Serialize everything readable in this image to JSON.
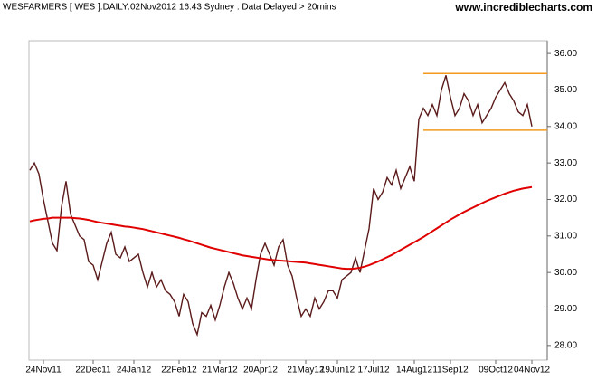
{
  "chart_data": {
    "type": "line",
    "title": "WESFARMERS [ WES ]:DAILY:02Nov2012 16:43 Sydney : Data Delayed > 20mins",
    "subtitle": "www.incrediblecharts.com",
    "categories": [
      null,
      null,
      null,
      "24Nov11",
      null,
      null,
      null,
      null,
      null,
      null,
      null,
      null,
      null,
      null,
      "22Dec11",
      null,
      null,
      null,
      null,
      null,
      null,
      null,
      null,
      "24Jan12",
      null,
      null,
      null,
      null,
      null,
      null,
      null,
      null,
      null,
      "22Feb12",
      null,
      null,
      null,
      null,
      null,
      null,
      null,
      null,
      "21Mar12",
      null,
      null,
      null,
      null,
      null,
      null,
      null,
      null,
      "20Apr12",
      null,
      null,
      null,
      null,
      null,
      null,
      null,
      null,
      null,
      "21May12",
      null,
      null,
      null,
      null,
      null,
      null,
      "19Jun12",
      null,
      null,
      null,
      null,
      null,
      null,
      null,
      "17Jul12",
      null,
      null,
      null,
      null,
      null,
      null,
      null,
      null,
      "14Aug12",
      null,
      null,
      null,
      null,
      null,
      null,
      null,
      "11Sep12",
      null,
      null,
      null,
      null,
      null,
      null,
      null,
      null,
      null,
      "09Oct12",
      null,
      null,
      null,
      null,
      null,
      null,
      null,
      "04Nov12"
    ],
    "series": [
      {
        "color": "#5b1a1a",
        "values": [
          32.8,
          33.0,
          32.7,
          32.0,
          31.4,
          30.8,
          30.6,
          31.8,
          32.5,
          31.6,
          31.3,
          31.0,
          30.9,
          30.3,
          30.2,
          29.8,
          30.3,
          30.8,
          31.1,
          30.5,
          30.4,
          30.7,
          30.3,
          30.4,
          30.5,
          30.0,
          29.6,
          30.0,
          29.6,
          29.8,
          29.5,
          29.4,
          29.2,
          28.8,
          29.4,
          29.2,
          28.6,
          28.3,
          28.9,
          28.8,
          29.1,
          28.7,
          29.1,
          29.6,
          30.0,
          29.7,
          29.3,
          29.0,
          29.3,
          29.0,
          29.8,
          30.5,
          30.8,
          30.5,
          30.2,
          30.7,
          30.9,
          30.2,
          29.9,
          29.3,
          28.8,
          29.0,
          28.8,
          29.3,
          29.0,
          29.2,
          29.5,
          29.5,
          29.3,
          29.8,
          29.9,
          30.0,
          30.4,
          30.0,
          30.6,
          31.2,
          32.3,
          32.0,
          32.2,
          32.6,
          32.4,
          32.8,
          32.3,
          32.6,
          32.9,
          32.5,
          34.2,
          34.5,
          34.3,
          34.6,
          34.3,
          35.0,
          35.4,
          34.8,
          34.3,
          34.5,
          34.9,
          34.7,
          34.3,
          34.6,
          34.1,
          34.3,
          34.5,
          34.8,
          35.0,
          35.2,
          34.9,
          34.7,
          34.4,
          34.3,
          34.6,
          34.0
        ]
      },
      {
        "color": "#e00000",
        "values": [
          31.4,
          31.43,
          31.45,
          31.47,
          31.48,
          31.5,
          31.5,
          31.5,
          31.5,
          31.5,
          31.49,
          31.48,
          31.46,
          31.44,
          31.41,
          31.38,
          31.36,
          31.34,
          31.32,
          31.3,
          31.28,
          31.26,
          31.25,
          31.23,
          31.21,
          31.19,
          31.16,
          31.13,
          31.1,
          31.07,
          31.04,
          31.01,
          30.98,
          30.95,
          30.91,
          30.88,
          30.84,
          30.8,
          30.76,
          30.72,
          30.68,
          30.65,
          30.62,
          30.59,
          30.56,
          30.53,
          30.5,
          30.47,
          30.45,
          30.43,
          30.41,
          30.39,
          30.37,
          30.35,
          30.34,
          30.33,
          30.32,
          30.31,
          30.3,
          30.29,
          30.28,
          30.27,
          30.25,
          30.23,
          30.21,
          30.19,
          30.17,
          30.15,
          30.13,
          30.11,
          30.1,
          30.1,
          30.11,
          30.13,
          30.16,
          30.2,
          30.25,
          30.3,
          30.36,
          30.42,
          30.48,
          30.55,
          30.62,
          30.69,
          30.76,
          30.83,
          30.9,
          30.97,
          31.05,
          31.13,
          31.21,
          31.29,
          31.37,
          31.45,
          31.52,
          31.59,
          31.66,
          31.72,
          31.78,
          31.84,
          31.9,
          31.96,
          32.01,
          32.06,
          32.11,
          32.16,
          32.2,
          32.24,
          32.27,
          32.3,
          32.32,
          32.34
        ]
      }
    ],
    "hlines": [
      {
        "value": 35.45,
        "color": "#f39a1e"
      },
      {
        "value": 33.9,
        "color": "#f39a1e"
      }
    ],
    "ylim": [
      27.6,
      36.35
    ],
    "yticks": [
      {
        "value": 28,
        "label": "28.00"
      },
      {
        "value": 29,
        "label": "29.00"
      },
      {
        "value": 30,
        "label": "30.00"
      },
      {
        "value": 31,
        "label": "31.00"
      },
      {
        "value": 32,
        "label": "32.00"
      },
      {
        "value": 33,
        "label": "33.00"
      },
      {
        "value": 34,
        "label": "34.00"
      },
      {
        "value": 35,
        "label": "35.00"
      },
      {
        "value": 36,
        "label": "36.00"
      }
    ],
    "grid": false
  }
}
